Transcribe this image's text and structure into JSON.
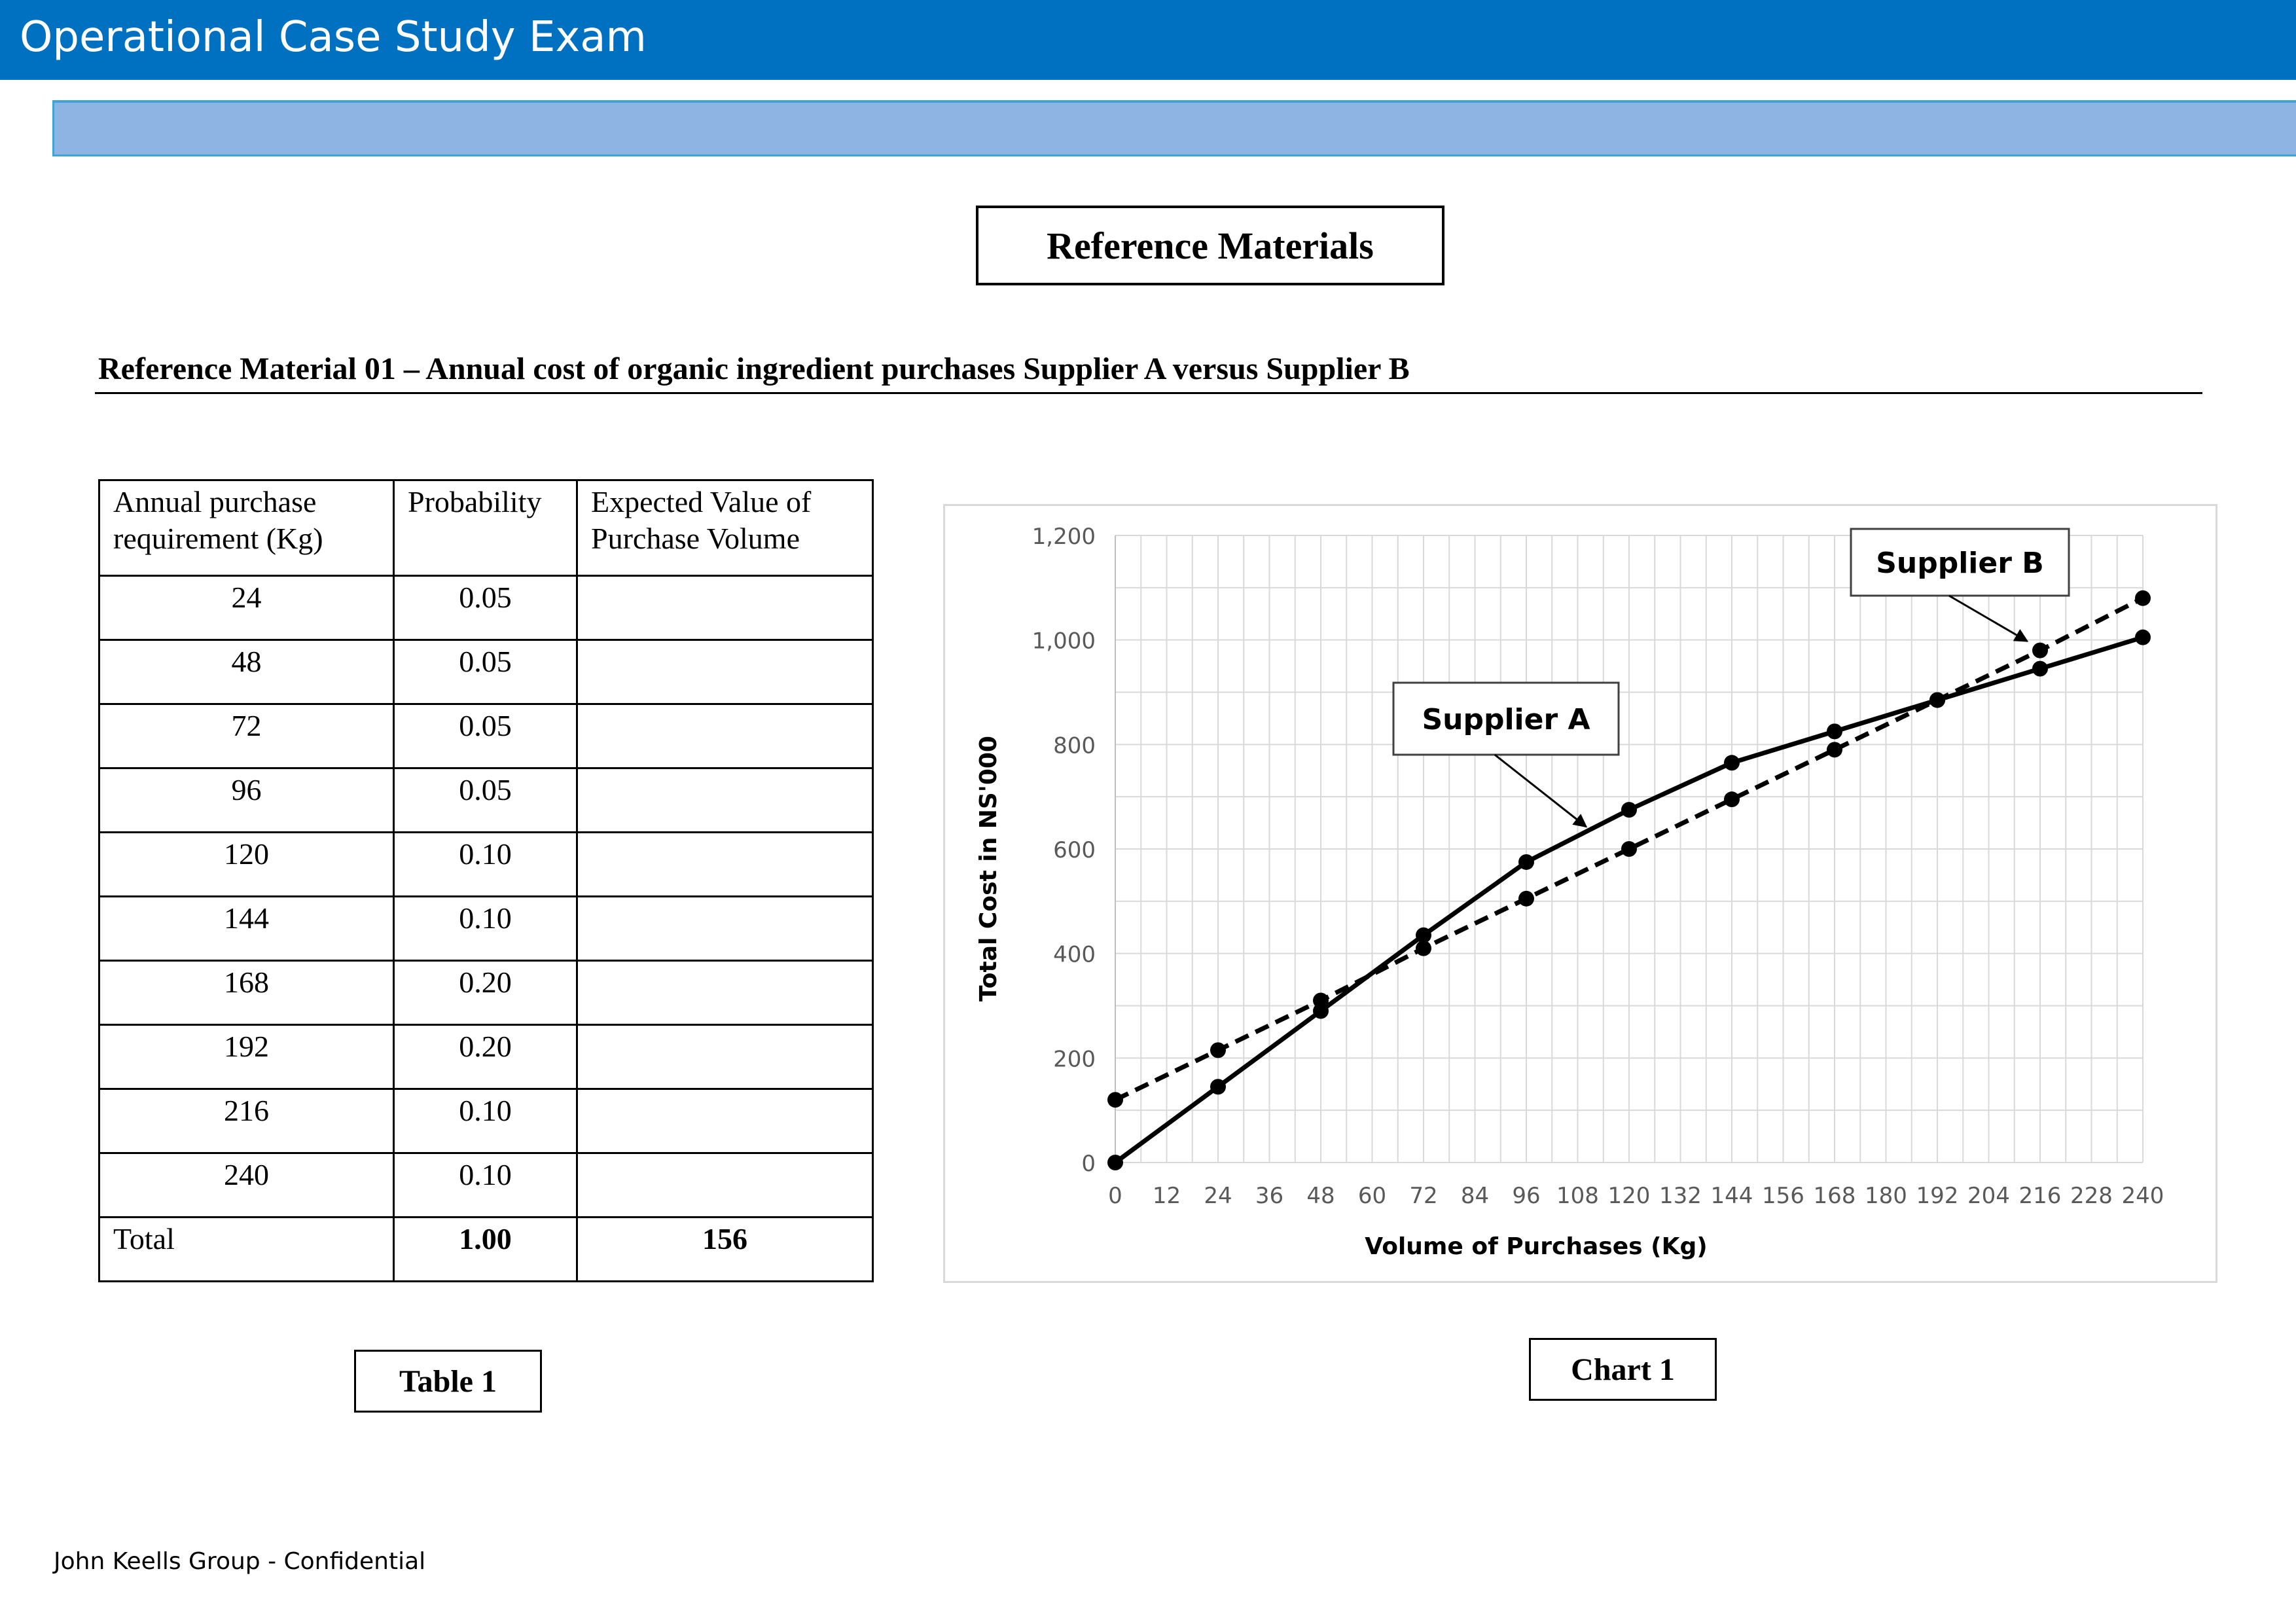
{
  "header": {
    "title": "Operational Case Study Exam"
  },
  "reference_box": {
    "label": "Reference Materials"
  },
  "section": {
    "heading": "Reference Material 01 – Annual cost of organic ingredient purchases Supplier A versus Supplier B"
  },
  "table": {
    "headers": [
      "Annual purchase requirement (Kg)",
      "Probability",
      "Expected Value of Purchase Volume"
    ],
    "rows": [
      {
        "kg": "24",
        "prob": "0.05",
        "ev": ""
      },
      {
        "kg": "48",
        "prob": "0.05",
        "ev": ""
      },
      {
        "kg": "72",
        "prob": "0.05",
        "ev": ""
      },
      {
        "kg": "96",
        "prob": "0.05",
        "ev": ""
      },
      {
        "kg": "120",
        "prob": "0.10",
        "ev": ""
      },
      {
        "kg": "144",
        "prob": "0.10",
        "ev": ""
      },
      {
        "kg": "168",
        "prob": "0.20",
        "ev": ""
      },
      {
        "kg": "192",
        "prob": "0.20",
        "ev": ""
      },
      {
        "kg": "216",
        "prob": "0.10",
        "ev": ""
      },
      {
        "kg": "240",
        "prob": "0.10",
        "ev": ""
      }
    ],
    "total": {
      "label": "Total",
      "prob": "1.00",
      "ev": "156"
    },
    "caption": "Table 1"
  },
  "chart_caption": "Chart 1",
  "footer": {
    "text": "John Keells Group - Confidential"
  },
  "chart_data": {
    "type": "line",
    "title": "",
    "xlabel": "Volume of Purchases (Kg)",
    "ylabel": "Total Cost in NS'000",
    "x_ticks": [
      "0",
      "12",
      "24",
      "36",
      "48",
      "60",
      "72",
      "84",
      "96",
      "108",
      "120",
      "132",
      "144",
      "156",
      "168",
      "180",
      "192",
      "204",
      "216",
      "228",
      "240"
    ],
    "y_ticks": [
      "0",
      "200",
      "400",
      "600",
      "800",
      "1,000",
      "1,200"
    ],
    "xlim": [
      0,
      240
    ],
    "ylim": [
      0,
      1200
    ],
    "grid": true,
    "series": [
      {
        "name": "Supplier A",
        "style": "solid",
        "color": "#000000",
        "x": [
          0,
          24,
          48,
          72,
          96,
          120,
          144,
          168,
          192,
          216,
          240
        ],
        "y": [
          0,
          145,
          290,
          435,
          575,
          675,
          765,
          825,
          885,
          945,
          1005
        ]
      },
      {
        "name": "Supplier B",
        "style": "dashed",
        "color": "#000000",
        "x": [
          0,
          24,
          48,
          72,
          96,
          120,
          144,
          168,
          192,
          216,
          240
        ],
        "y": [
          120,
          215,
          310,
          410,
          505,
          600,
          695,
          790,
          885,
          980,
          1080
        ]
      }
    ],
    "annotations": [
      {
        "text": "Supplier A",
        "points_to_series": "Supplier A"
      },
      {
        "text": "Supplier B",
        "points_to_series": "Supplier B"
      }
    ]
  }
}
